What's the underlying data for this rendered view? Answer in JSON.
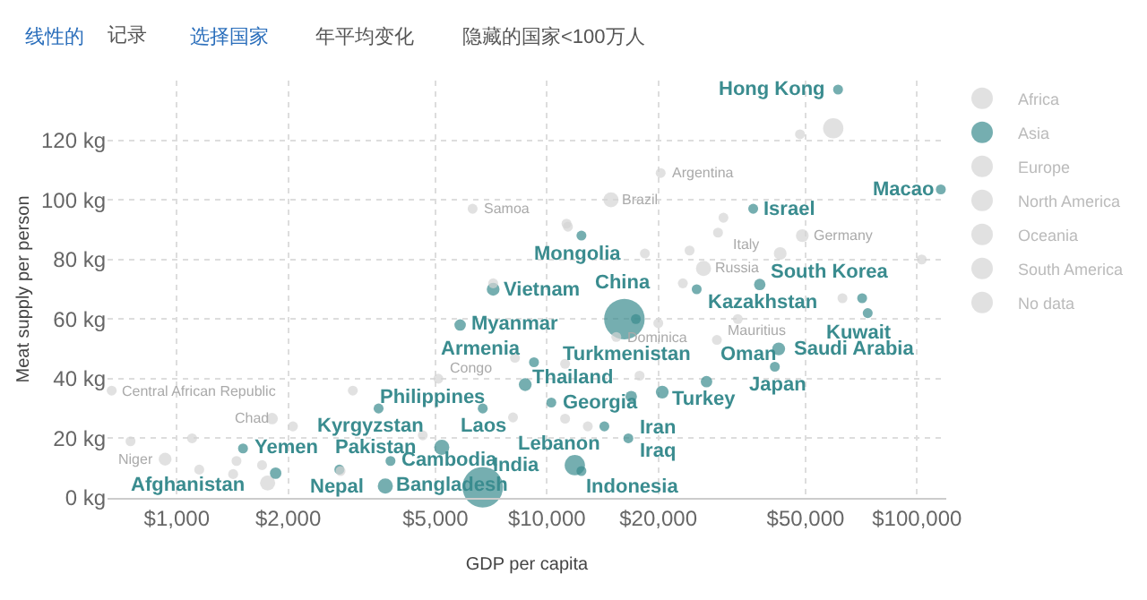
{
  "chart_data": {
    "type": "bubble",
    "xlabel": "GDP per capita",
    "ylabel": "Meat supply per person",
    "log": "x",
    "grid": true,
    "legend": "top right",
    "marker": "circle",
    "xlim": [
      650,
      120000
    ],
    "ylim": [
      0,
      140
    ],
    "xticks": [
      {
        "value": 1000,
        "label": "$1,000"
      },
      {
        "value": 2000,
        "label": "$2,000"
      },
      {
        "value": 5000,
        "label": "$5,000"
      },
      {
        "value": 10000,
        "label": "$10,000"
      },
      {
        "value": 20000,
        "label": "$20,000"
      },
      {
        "value": 50000,
        "label": "$50,000"
      },
      {
        "value": 100000,
        "label": "$100,000"
      }
    ],
    "yticks": [
      {
        "value": 0,
        "label": "0 kg"
      },
      {
        "value": 20,
        "label": "20 kg"
      },
      {
        "value": 40,
        "label": "40 kg"
      },
      {
        "value": 60,
        "label": "60 kg"
      },
      {
        "value": 80,
        "label": "80 kg"
      },
      {
        "value": 100,
        "label": "100 kg"
      },
      {
        "value": 120,
        "label": "120 kg"
      }
    ],
    "series": [
      {
        "name": "Africa",
        "color": "#d4d4d4",
        "x": [
          667,
          930,
          1810,
          5090,
          28800,
          750,
          1100,
          1150,
          1420,
          1450,
          1760,
          1700,
          2060,
          2990,
          4620
        ],
        "values": [
          36,
          13,
          26.6,
          40,
          53,
          19,
          20,
          9.5,
          8,
          12.4,
          5,
          11,
          24,
          36,
          21
        ],
        "sizes": [
          0.06,
          0.1,
          0.08,
          0.06,
          0.06,
          0.06,
          0.06,
          0.06,
          0.06,
          0.06,
          0.14,
          0.06,
          0.06,
          0.06,
          0.06
        ]
      },
      {
        "name": "Asia",
        "color": "#3a8c8f",
        "x": [
          61200,
          116000,
          36100,
          12400,
          37600,
          25400,
          71100,
          73600,
          16200,
          17400,
          42300,
          41300,
          27000,
          20500,
          16900,
          14300,
          16600,
          11900,
          7160,
          5830,
          9230,
          8740,
          3510,
          6710,
          10280,
          5200,
          1510,
          2750,
          3780,
          1850,
          3660,
          6710,
          12400
        ],
        "values": [
          137,
          103.5,
          97,
          88,
          71.6,
          70,
          67,
          62,
          60,
          60,
          50,
          44,
          39,
          35.5,
          34,
          24,
          20,
          11,
          70,
          58,
          45.5,
          38,
          30,
          30,
          32,
          17,
          16.6,
          9.5,
          12.4,
          8.3,
          4,
          3.6,
          9
        ],
        "sizes": [
          0.06,
          0.06,
          0.06,
          0.06,
          0.08,
          0.06,
          0.06,
          0.06,
          1,
          0.06,
          0.1,
          0.06,
          0.08,
          0.1,
          0.08,
          0.06,
          0.06,
          0.25,
          0.1,
          0.08,
          0.06,
          0.1,
          0.06,
          0.06,
          0.06,
          0.14,
          0.06,
          0.06,
          0.06,
          0.08,
          0.14,
          1,
          0.06
        ]
      },
      {
        "name": "Europe",
        "color": "#d4d4d4",
        "x": [
          26500,
          42700,
          49000,
          30000,
          29000,
          24300,
          32800,
          23300,
          18400,
          20000,
          103000
        ],
        "values": [
          77,
          82,
          88,
          94,
          89,
          83,
          60,
          72,
          82,
          58.6,
          80
        ],
        "sizes": [
          0.14,
          0.1,
          0.1,
          0.06,
          0.06,
          0.06,
          0.06,
          0.06,
          0.06,
          0.06,
          0.06
        ]
      },
      {
        "name": "North America",
        "color": "#d4d4d4",
        "x": [
          15400,
          59400,
          11200,
          8100,
          8200,
          17800,
          12900
        ],
        "values": [
          54,
          124,
          45,
          27,
          47,
          41,
          24
        ],
        "sizes": [
          0.06,
          0.25,
          0.06,
          0.06,
          0.06,
          0.06,
          0.06
        ]
      },
      {
        "name": "Oceania",
        "color": "#d4d4d4",
        "x": [
          6300,
          48300,
          62900
        ],
        "values": [
          97,
          122,
          67
        ],
        "sizes": [
          0.06,
          0.06,
          0.06
        ]
      },
      {
        "name": "South America",
        "color": "#d4d4d4",
        "x": [
          20300,
          14900,
          11400,
          11300,
          7160,
          11200
        ],
        "values": [
          109,
          100,
          91,
          92,
          72,
          26.6
        ],
        "sizes": [
          0.06,
          0.14,
          0.06,
          0.06,
          0.06,
          0.06
        ]
      },
      {
        "name": "No data",
        "color": "#d4d4d4",
        "x": [
          2770
        ],
        "values": [
          9
        ],
        "sizes": [
          0.06
        ]
      }
    ],
    "annotations": [
      "线性的",
      "记录",
      "选择国家",
      "年平均变化",
      "隐藏的国家<100万人",
      {
        "text": "Hong Kong",
        "x": 61200,
        "y": 137
      },
      {
        "text": "Macao",
        "x": 116000,
        "y": 103.5
      },
      {
        "text": "Israel",
        "x": 36100,
        "y": 97
      },
      {
        "text": "Mongolia",
        "x": 12400,
        "y": 88
      },
      {
        "text": "South Korea",
        "x": 37600,
        "y": 71.6
      },
      {
        "text": "Kazakhstan",
        "x": 25400,
        "y": 70
      },
      {
        "text": "Kuwait",
        "x": 71100,
        "y": 67
      },
      {
        "text": "Saudi Arabia",
        "x": 73600,
        "y": 62
      },
      {
        "text": "China",
        "x": 16200,
        "y": 60
      },
      {
        "text": "Turkmenistan",
        "x": 17400,
        "y": 60
      },
      {
        "text": "Japan",
        "x": 42300,
        "y": 50
      },
      {
        "text": "Oman",
        "x": 41300,
        "y": 44
      },
      {
        "text": "Turkey",
        "x": 27000,
        "y": 39
      },
      {
        "text": "Iran",
        "x": 20500,
        "y": 35.5
      },
      {
        "text": "Thailand",
        "x": 16900,
        "y": 34
      },
      {
        "text": "Lebanon",
        "x": 14300,
        "y": 24
      },
      {
        "text": "Iraq",
        "x": 16600,
        "y": 20
      },
      {
        "text": "Indonesia",
        "x": 11900,
        "y": 11
      },
      {
        "text": "Vietnam",
        "x": 7160,
        "y": 70
      },
      {
        "text": "Myanmar",
        "x": 5830,
        "y": 58
      },
      {
        "text": "Armenia",
        "x": 9230,
        "y": 45.5
      },
      {
        "text": "Philippines",
        "x": 8740,
        "y": 38
      },
      {
        "text": "Kyrgyzstan",
        "x": 3510,
        "y": 30
      },
      {
        "text": "Laos",
        "x": 6710,
        "y": 30
      },
      {
        "text": "Georgia",
        "x": 10280,
        "y": 32
      },
      {
        "text": "Pakistan",
        "x": 5200,
        "y": 17
      },
      {
        "text": "Yemen",
        "x": 1510,
        "y": 16.6
      },
      {
        "text": "Nepal",
        "x": 2750,
        "y": 9.5
      },
      {
        "text": "Cambodia",
        "x": 3780,
        "y": 12.4
      },
      {
        "text": "Afghanistan",
        "x": 1850,
        "y": 8.3
      },
      {
        "text": "Bangladesh",
        "x": 3660,
        "y": 4
      },
      {
        "text": "India",
        "x": 6710,
        "y": 3.6
      },
      {
        "text": "Samoa",
        "x": 6300,
        "y": 97
      },
      {
        "text": "Argentina",
        "x": 20300,
        "y": 109
      },
      {
        "text": "Brazil",
        "x": 14900,
        "y": 100
      },
      {
        "text": "Germany",
        "x": 49000,
        "y": 88
      },
      {
        "text": "Italy",
        "x": 42700,
        "y": 82
      },
      {
        "text": "Russia",
        "x": 26500,
        "y": 77
      },
      {
        "text": "Dominica",
        "x": 15400,
        "y": 54
      },
      {
        "text": "Mauritius",
        "x": 28800,
        "y": 53
      },
      {
        "text": "Congo",
        "x": 5090,
        "y": 40
      },
      {
        "text": "Chad",
        "x": 1810,
        "y": 26.6
      },
      {
        "text": "Niger",
        "x": 930,
        "y": 13
      },
      {
        "text": "Central African Republic",
        "x": 667,
        "y": 36
      }
    ]
  }
}
